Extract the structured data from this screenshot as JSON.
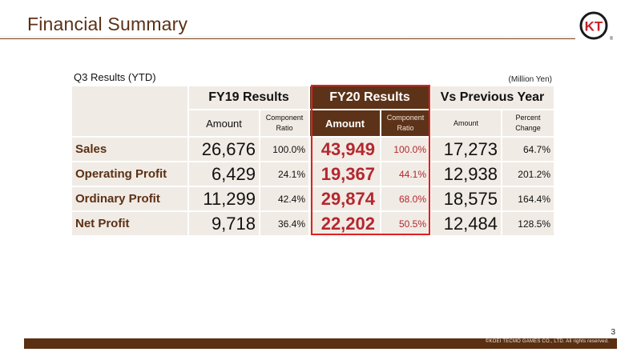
{
  "header": {
    "title": "Financial Summary",
    "logo_text": "KT",
    "logo_mark": "®"
  },
  "caption": "Q3 Results (YTD)",
  "unit_note": "(Million Yen)",
  "table": {
    "groups": {
      "fy19": "FY19 Results",
      "fy20": "FY20 Results",
      "vs": "Vs Previous Year"
    },
    "subheaders": {
      "fy19_amount": "Amount",
      "fy19_ratio_1": "Component",
      "fy19_ratio_2": "Ratio",
      "fy20_amount": "Amount",
      "fy20_ratio_1": "Component",
      "fy20_ratio_2": "Ratio",
      "vs_amount": "Amount",
      "vs_change_1": "Percent",
      "vs_change_2": "Change"
    },
    "rows": [
      {
        "label": "Sales",
        "fy19_amount": "26,676",
        "fy19_ratio": "100.0%",
        "fy20_amount": "43,949",
        "fy20_ratio": "100.0%",
        "vs_amount": "17,273",
        "vs_change": "64.7%"
      },
      {
        "label": "Operating Profit",
        "fy19_amount": "6,429",
        "fy19_ratio": "24.1%",
        "fy20_amount": "19,367",
        "fy20_ratio": "44.1%",
        "vs_amount": "12,938",
        "vs_change": "201.2%"
      },
      {
        "label": "Ordinary Profit",
        "fy19_amount": "11,299",
        "fy19_ratio": "42.4%",
        "fy20_amount": "29,874",
        "fy20_ratio": "68.0%",
        "vs_amount": "18,575",
        "vs_change": "164.4%"
      },
      {
        "label": "Net Profit",
        "fy19_amount": "9,718",
        "fy19_ratio": "36.4%",
        "fy20_amount": "22,202",
        "fy20_ratio": "50.5%",
        "vs_amount": "12,484",
        "vs_change": "128.5%"
      }
    ]
  },
  "footer": {
    "page_number": "3",
    "copyright": "©KOEI TECMO GAMES CO., LTD. All rights reserved."
  },
  "colors": {
    "brand_brown": "#5c3015",
    "highlight_red": "#b5272f",
    "box_red": "#e02020",
    "cell_bg": "#f0ebe5"
  }
}
